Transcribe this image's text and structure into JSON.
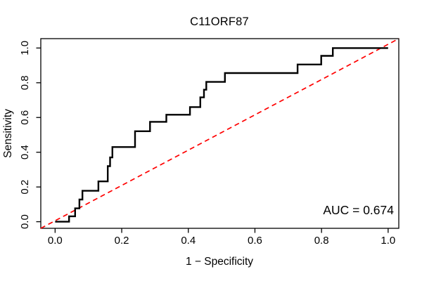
{
  "chart_data": {
    "type": "line",
    "title": "C11ORF87",
    "xlabel": "1 − Specificity",
    "ylabel": "Sensitivity",
    "annotation": "AUC = 0.674",
    "auc_value": 0.674,
    "x_ticks": [
      0.0,
      0.2,
      0.4,
      0.6,
      0.8,
      1.0
    ],
    "y_ticks": [
      0.0,
      0.2,
      0.4,
      0.6,
      0.8,
      1.0
    ],
    "xlim": [
      -0.043,
      1.032
    ],
    "ylim": [
      -0.038,
      1.054
    ],
    "grid": false,
    "legend": "none",
    "colors": {
      "roc_curve": "#000000",
      "diagonal": "#FF0000",
      "axis": "#000000",
      "text": "#000000"
    },
    "series": [
      {
        "name": "ROC step curve",
        "color": "#000000",
        "style": "solid",
        "step_vertices": [
          [
            0.0,
            0.0
          ],
          [
            0.042,
            0.0
          ],
          [
            0.042,
            0.031
          ],
          [
            0.06,
            0.031
          ],
          [
            0.06,
            0.077
          ],
          [
            0.073,
            0.077
          ],
          [
            0.073,
            0.128
          ],
          [
            0.082,
            0.128
          ],
          [
            0.082,
            0.178
          ],
          [
            0.13,
            0.178
          ],
          [
            0.13,
            0.232
          ],
          [
            0.158,
            0.232
          ],
          [
            0.158,
            0.32
          ],
          [
            0.165,
            0.32
          ],
          [
            0.165,
            0.37
          ],
          [
            0.172,
            0.37
          ],
          [
            0.172,
            0.43
          ],
          [
            0.24,
            0.43
          ],
          [
            0.24,
            0.521
          ],
          [
            0.285,
            0.521
          ],
          [
            0.285,
            0.575
          ],
          [
            0.334,
            0.575
          ],
          [
            0.334,
            0.616
          ],
          [
            0.405,
            0.616
          ],
          [
            0.405,
            0.66
          ],
          [
            0.436,
            0.66
          ],
          [
            0.436,
            0.716
          ],
          [
            0.447,
            0.716
          ],
          [
            0.447,
            0.76
          ],
          [
            0.454,
            0.76
          ],
          [
            0.454,
            0.805
          ],
          [
            0.51,
            0.805
          ],
          [
            0.51,
            0.856
          ],
          [
            0.728,
            0.856
          ],
          [
            0.728,
            0.905
          ],
          [
            0.799,
            0.905
          ],
          [
            0.799,
            0.955
          ],
          [
            0.834,
            0.955
          ],
          [
            0.834,
            1.0
          ],
          [
            1.0,
            1.0
          ]
        ]
      },
      {
        "name": "chance diagonal (y = x)",
        "color": "#FF0000",
        "style": "dashed",
        "points": [
          [
            0,
            0
          ],
          [
            1,
            1
          ]
        ],
        "extends_to_plot_corners": true
      }
    ]
  }
}
